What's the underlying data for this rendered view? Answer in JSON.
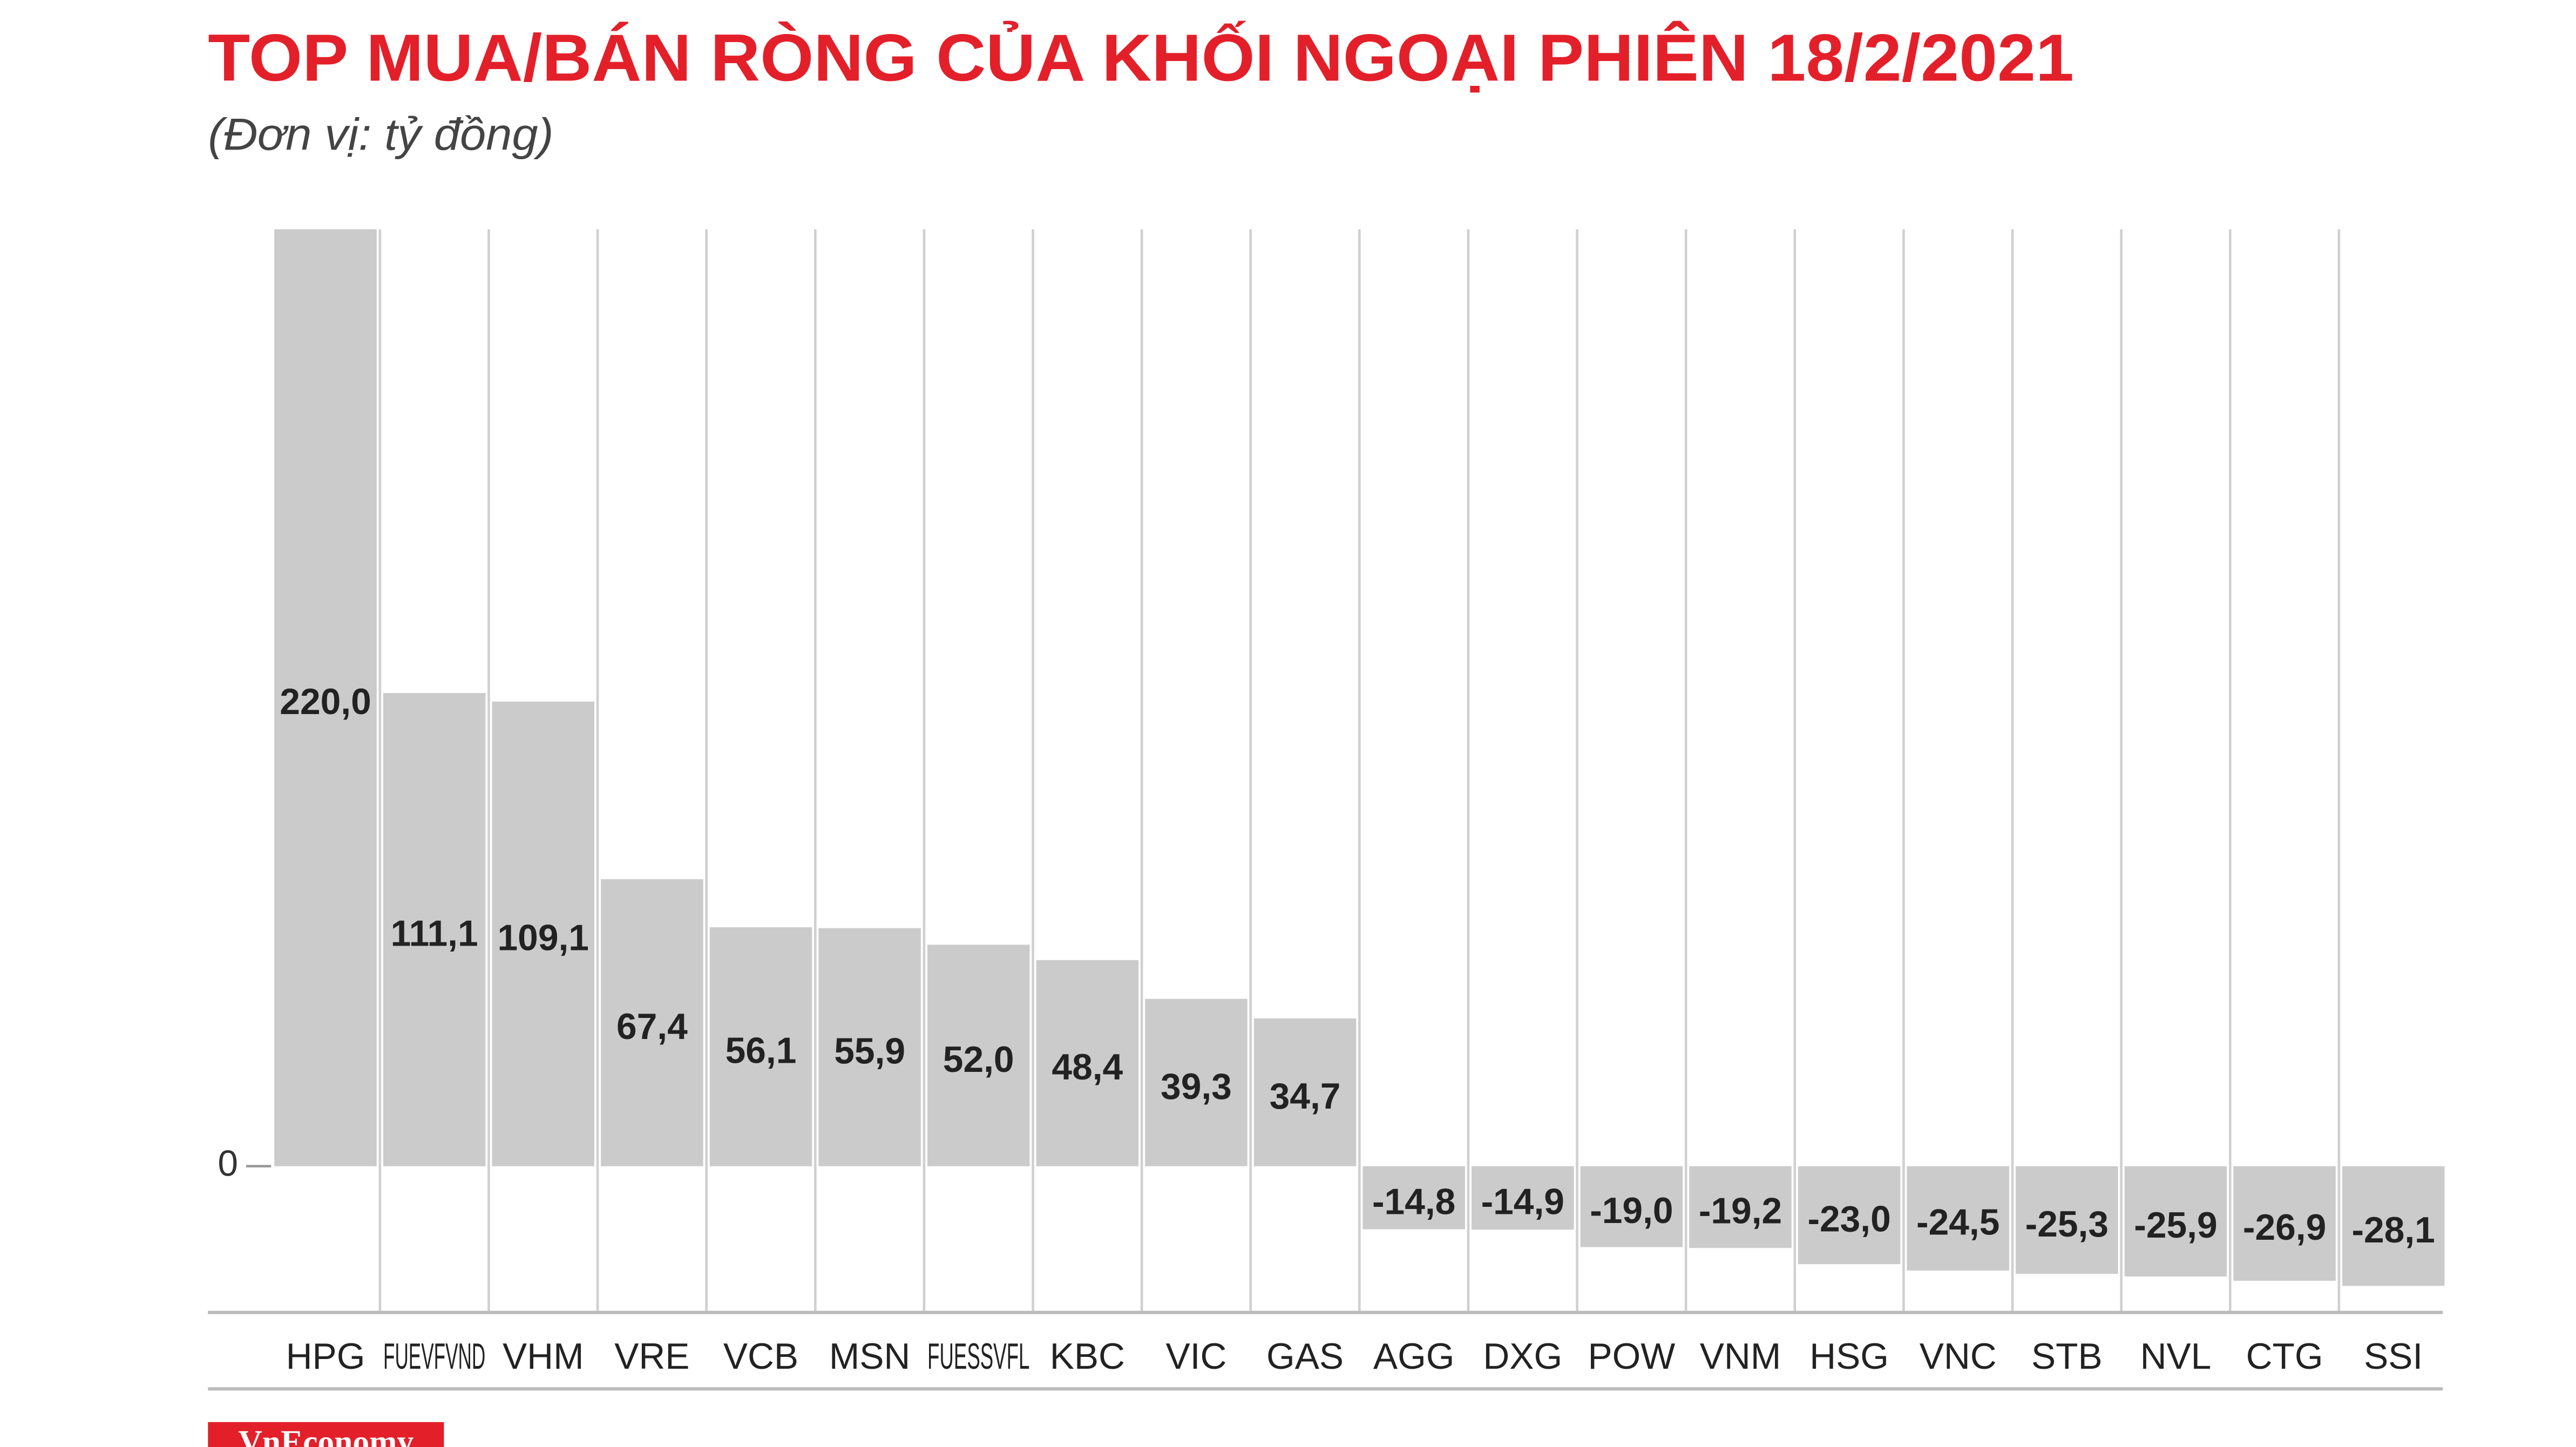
{
  "chart_data": {
    "type": "bar",
    "title": "TOP MUA/BÁN RÒNG CỦA KHỐI NGOẠI PHIÊN 18/2/2021",
    "subtitle": "(Đơn vị: tỷ đồng)",
    "source": "VnEconomy",
    "categories": [
      "HPG",
      "FUEVFVND",
      "VHM",
      "VRE",
      "VCB",
      "MSN",
      "FUESSVFL",
      "KBC",
      "VIC",
      "GAS",
      "AGG",
      "DXG",
      "POW",
      "VNM",
      "HSG",
      "VNC",
      "STB",
      "NVL",
      "CTG",
      "SSI"
    ],
    "values": [
      220.0,
      111.1,
      109.1,
      67.4,
      56.1,
      55.9,
      52.0,
      48.4,
      39.3,
      34.7,
      -14.8,
      -14.9,
      -19.0,
      -19.2,
      -23.0,
      -24.5,
      -25.3,
      -25.9,
      -26.9,
      -28.1
    ],
    "value_labels": [
      "220,0",
      "111,1",
      "109,1",
      "67,4",
      "56,1",
      "55,9",
      "52,0",
      "48,4",
      "39,3",
      "34,7",
      "-14,8",
      "-14,9",
      "-19,0",
      "-19,2",
      "-23,0",
      "-24,5",
      "-25,3",
      "-25,9",
      "-26,9",
      "-28,1"
    ],
    "color": "#cbcbcb",
    "ylim": [
      -35,
      220
    ],
    "yticks": [
      0
    ]
  }
}
